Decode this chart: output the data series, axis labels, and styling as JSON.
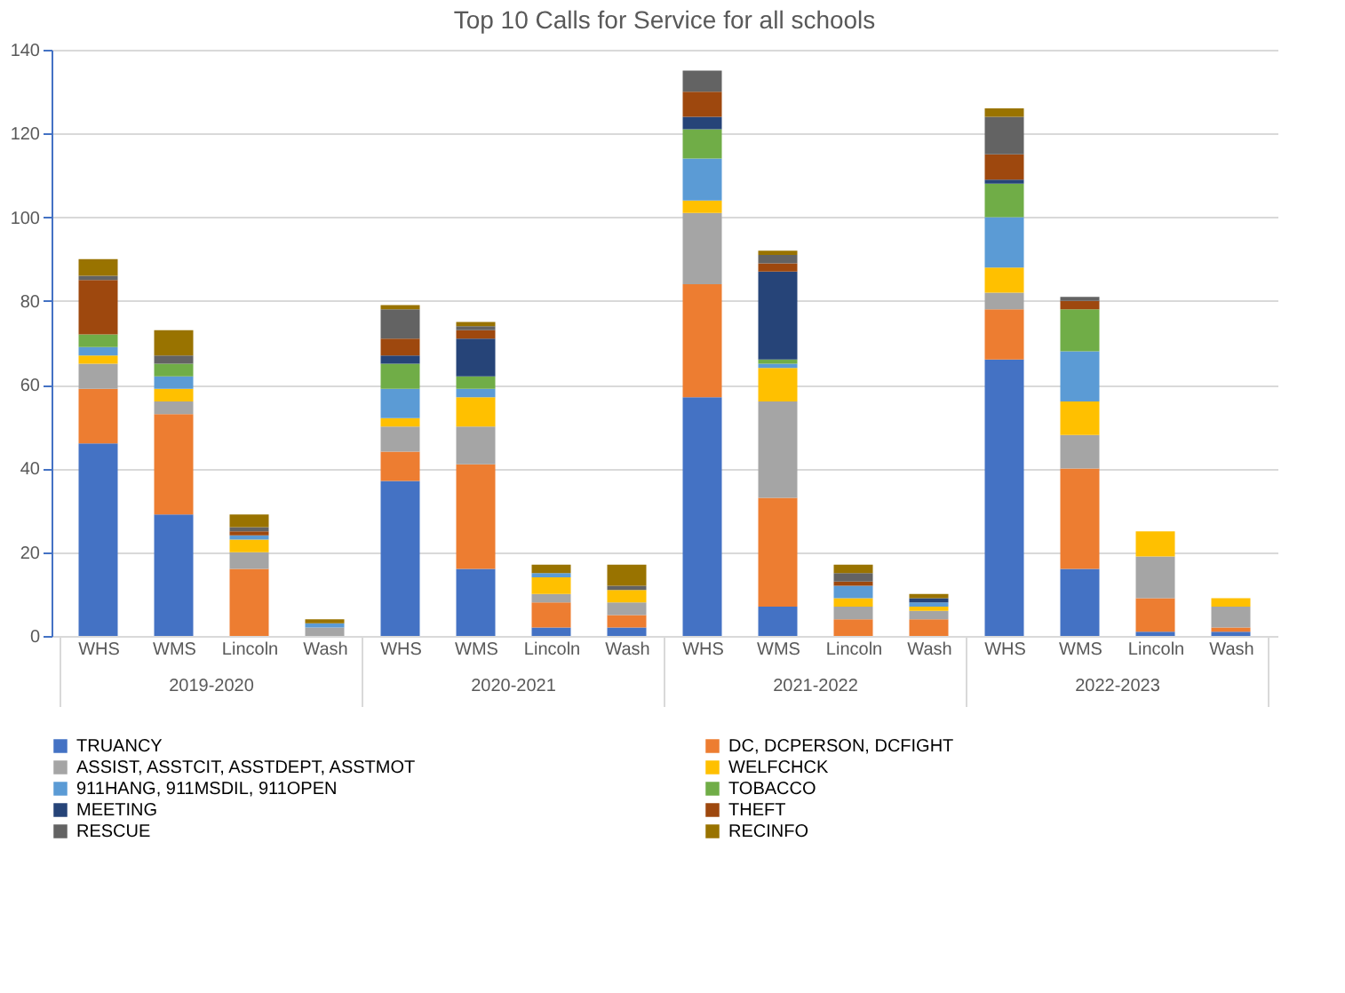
{
  "chart_data": {
    "type": "bar",
    "title": "Top 10 Calls for Service for all schools",
    "stacked": true,
    "grid": "y",
    "legend": "bottom",
    "categories": [
      "WHS",
      "WMS",
      "Lincoln",
      "Wash",
      "WHS",
      "WMS",
      "Lincoln",
      "Wash",
      "WHS",
      "WMS",
      "Lincoln",
      "Wash",
      "WHS",
      "WMS",
      "Lincoln",
      "Wash"
    ],
    "annotations": [
      "2019-2020",
      "2020-2021",
      "2021-2022",
      "2022-2023"
    ],
    "ylim": [
      0,
      140
    ],
    "yticks": [
      0,
      20,
      40,
      60,
      80,
      100,
      120,
      140
    ],
    "series": [
      {
        "name": "TRUANCY",
        "color": "#4472c4",
        "values": [
          46,
          29,
          0,
          0,
          37,
          16,
          2,
          2,
          57,
          7,
          0,
          0,
          66,
          16,
          1,
          1
        ]
      },
      {
        "name": "DC, DCPERSON, DCFIGHT",
        "color": "#ed7d31",
        "values": [
          13,
          24,
          16,
          0,
          7,
          25,
          6,
          3,
          27,
          26,
          4,
          4,
          12,
          24,
          8,
          1
        ]
      },
      {
        "name": "ASSIST, ASSTCIT, ASSTDEPT, ASSTMOT",
        "color": "#a5a5a5",
        "values": [
          6,
          3,
          4,
          2,
          6,
          9,
          2,
          3,
          17,
          23,
          3,
          2,
          4,
          8,
          10,
          5
        ]
      },
      {
        "name": "WELFCHCK",
        "color": "#ffc000",
        "values": [
          2,
          3,
          3,
          0,
          2,
          7,
          4,
          3,
          3,
          8,
          2,
          1,
          6,
          8,
          6,
          2
        ]
      },
      {
        "name": "911HANG, 911MSDIL, 911OPEN",
        "color": "#5b9bd5",
        "values": [
          2,
          3,
          1,
          1,
          7,
          2,
          1,
          0,
          10,
          1,
          3,
          1,
          12,
          12,
          0,
          0
        ]
      },
      {
        "name": "TOBACCO",
        "color": "#70ad47",
        "values": [
          3,
          3,
          0,
          0,
          6,
          3,
          0,
          0,
          7,
          1,
          0,
          0,
          8,
          10,
          0,
          0
        ]
      },
      {
        "name": "MEETING",
        "color": "#264478",
        "values": [
          0,
          0,
          0,
          0,
          2,
          9,
          0,
          0,
          3,
          21,
          0,
          1,
          1,
          0,
          0,
          0
        ]
      },
      {
        "name": "THEFT",
        "color": "#9e480e",
        "values": [
          13,
          0,
          1,
          0,
          4,
          2,
          0,
          0,
          6,
          2,
          1,
          0,
          6,
          2,
          0,
          0
        ]
      },
      {
        "name": "RESCUE",
        "color": "#636363",
        "values": [
          1,
          2,
          1,
          0,
          7,
          1,
          0,
          1,
          5,
          2,
          2,
          0,
          9,
          1,
          0,
          0
        ]
      },
      {
        "name": "RECINFO",
        "color": "#997300",
        "values": [
          4,
          6,
          3,
          1,
          1,
          1,
          2,
          5,
          0,
          1,
          2,
          1,
          2,
          0,
          0,
          0
        ]
      }
    ]
  }
}
